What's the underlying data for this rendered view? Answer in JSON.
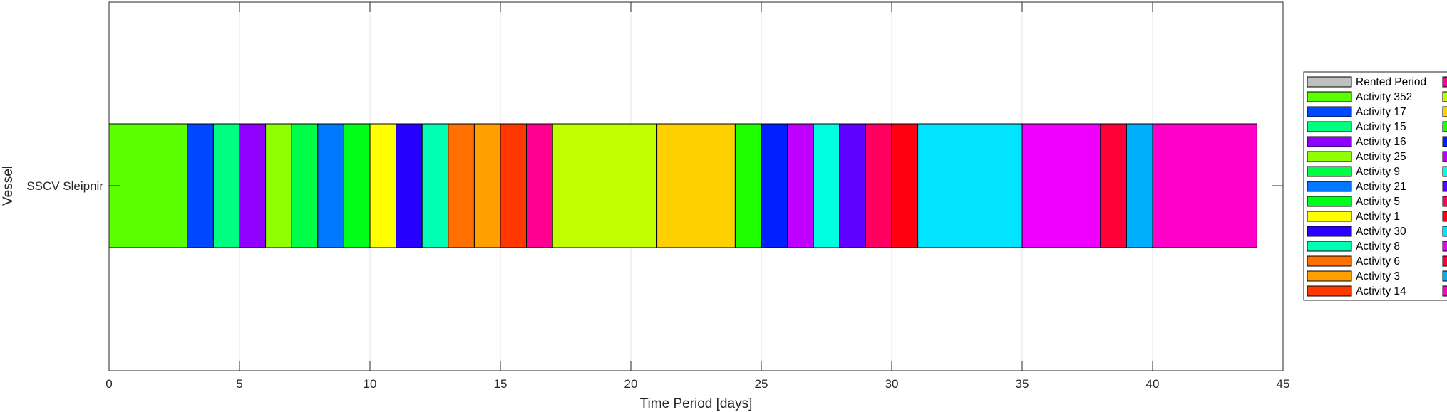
{
  "chart_data": {
    "type": "bar",
    "orientation": "horizontal-stacked-gantt",
    "xlabel": "Time Period [days]",
    "ylabel": "Vessel",
    "xlim": [
      0,
      45
    ],
    "xticks": [
      0,
      5,
      10,
      15,
      20,
      25,
      30,
      35,
      40,
      45
    ],
    "grid": true,
    "legend_placement": "right (clipped)",
    "categories": [
      "SSCV Sleipnir"
    ],
    "segments": [
      {
        "start": 0,
        "end": 3,
        "color": "#5AFF00"
      },
      {
        "start": 3,
        "end": 4,
        "color": "#0048FF"
      },
      {
        "start": 4,
        "end": 5,
        "color": "#00FF80"
      },
      {
        "start": 5,
        "end": 6,
        "color": "#8F00FF"
      },
      {
        "start": 6,
        "end": 7,
        "color": "#90FF00"
      },
      {
        "start": 7,
        "end": 8,
        "color": "#00FF48"
      },
      {
        "start": 8,
        "end": 9,
        "color": "#0078FF"
      },
      {
        "start": 9,
        "end": 10,
        "color": "#00FF1A"
      },
      {
        "start": 10,
        "end": 11,
        "color": "#FFFF00"
      },
      {
        "start": 11,
        "end": 12,
        "color": "#2800FF"
      },
      {
        "start": 12,
        "end": 13,
        "color": "#00FFB4"
      },
      {
        "start": 13,
        "end": 14,
        "color": "#FF7000"
      },
      {
        "start": 14,
        "end": 15,
        "color": "#FFA000"
      },
      {
        "start": 15,
        "end": 16,
        "color": "#FF3800"
      },
      {
        "start": 16,
        "end": 17,
        "color": "#FF0090"
      },
      {
        "start": 17,
        "end": 21,
        "color": "#C0FF00"
      },
      {
        "start": 21,
        "end": 24,
        "color": "#FFD000"
      },
      {
        "start": 24,
        "end": 25,
        "color": "#20FF00"
      },
      {
        "start": 25,
        "end": 26,
        "color": "#0020FF"
      },
      {
        "start": 26,
        "end": 27,
        "color": "#C000FF"
      },
      {
        "start": 27,
        "end": 28,
        "color": "#00FFE0"
      },
      {
        "start": 28,
        "end": 29,
        "color": "#6000FF"
      },
      {
        "start": 29,
        "end": 30,
        "color": "#FF0060"
      },
      {
        "start": 30,
        "end": 31,
        "color": "#FF0010"
      },
      {
        "start": 31,
        "end": 35,
        "color": "#00E4FF"
      },
      {
        "start": 35,
        "end": 38,
        "color": "#F000FF"
      },
      {
        "start": 38,
        "end": 39,
        "color": "#FF0038"
      },
      {
        "start": 39,
        "end": 40,
        "color": "#00B0FF"
      },
      {
        "start": 40,
        "end": 44,
        "color": "#FF00C8"
      }
    ],
    "legend": [
      {
        "label": "Rented Period",
        "color": "#C0C0C0"
      },
      {
        "label": "Activity 352",
        "color": "#5AFF00"
      },
      {
        "label": "Activity 17",
        "color": "#0048FF"
      },
      {
        "label": "Activity 15",
        "color": "#00FF80"
      },
      {
        "label": "Activity 16",
        "color": "#8F00FF"
      },
      {
        "label": "Activity 25",
        "color": "#90FF00"
      },
      {
        "label": "Activity 9",
        "color": "#00FF48"
      },
      {
        "label": "Activity 21",
        "color": "#0078FF"
      },
      {
        "label": "Activity 5",
        "color": "#00FF1A"
      },
      {
        "label": "Activity 1",
        "color": "#FFFF00"
      },
      {
        "label": "Activity 30",
        "color": "#2800FF"
      },
      {
        "label": "Activity 8",
        "color": "#00FFB4"
      },
      {
        "label": "Activity 6",
        "color": "#FF7000"
      },
      {
        "label": "Activity 3",
        "color": "#FFA000"
      },
      {
        "label": "Activity 14",
        "color": "#FF3800"
      }
    ],
    "legend_col2_colors": [
      "#FF0090",
      "#C0FF00",
      "#FFD000",
      "#20FF00",
      "#0020FF",
      "#C000FF",
      "#00FFE0",
      "#6000FF",
      "#FF0060",
      "#FF0010",
      "#00E4FF",
      "#F000FF",
      "#FF0038",
      "#00B0FF",
      "#FF00C8"
    ]
  }
}
